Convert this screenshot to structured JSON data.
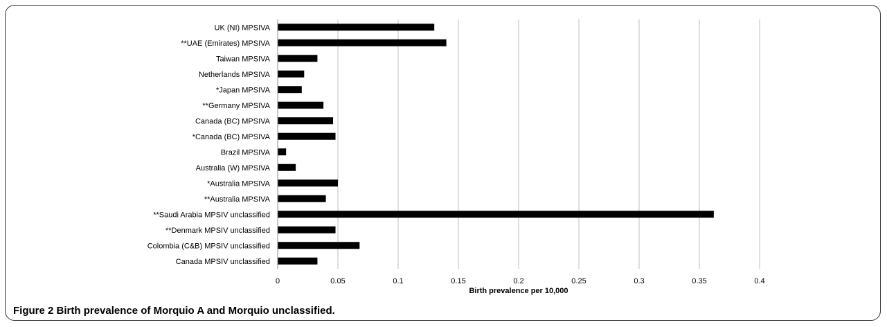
{
  "chart_data": {
    "type": "bar",
    "orientation": "horizontal",
    "categories": [
      "UK (NI) MPSIVA",
      "**UAE (Emirates) MPSIVA",
      "Taiwan MPSIVA",
      "Netherlands MPSIVA",
      "*Japan MPSIVA",
      "**Germany MPSIVA",
      "Canada (BC) MPSIVA",
      "*Canada (BC) MPSIVA",
      "Brazil MPSIVA",
      "Australia (W) MPSIVA",
      "*Australia MPSIVA",
      "**Australia MPSIVA",
      "**Saudi Arabia MPSIV unclassified",
      "**Denmark MPSIV unclassified",
      "Colombia (C&B) MPSIV  unclassified",
      "Canada MPSIV unclassified"
    ],
    "values": [
      0.13,
      0.14,
      0.033,
      0.022,
      0.02,
      0.038,
      0.046,
      0.048,
      0.007,
      0.015,
      0.05,
      0.04,
      0.362,
      0.048,
      0.068,
      0.033
    ],
    "xlabel": "Birth prevalence per 10,000",
    "ylabel": "",
    "xlim": [
      0,
      0.4
    ],
    "xticks": [
      "0",
      "0.05",
      "0.1",
      "0.15",
      "0.2",
      "0.25",
      "0.3",
      "0.35",
      "0.4"
    ],
    "grid": "vertical",
    "legend": "none",
    "bar_color": "#000000",
    "grid_color": "#bfbfbf"
  },
  "caption": {
    "label": "Figure 2",
    "text": "Birth prevalence of Morquio A and Morquio unclassified."
  }
}
